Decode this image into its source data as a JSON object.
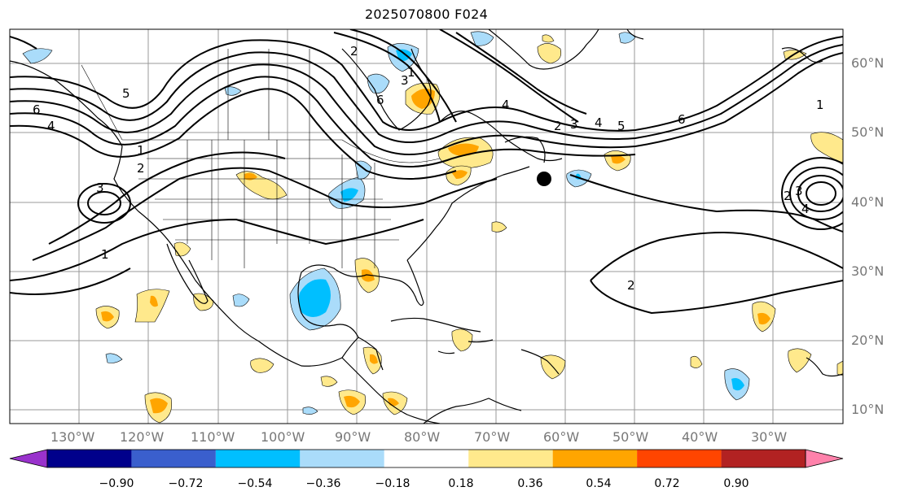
{
  "title": "2025070800 F024",
  "lon_labels": [
    "130°W",
    "120°W",
    "110°W",
    "100°W",
    "90°W",
    "80°W",
    "70°W",
    "60°W",
    "50°W",
    "40°W",
    "30°W"
  ],
  "lat_labels": [
    "60°N",
    "50°N",
    "40°N",
    "30°N",
    "20°N",
    "10°N"
  ],
  "contour_labels": [
    "6",
    "4",
    "5",
    "1",
    "2",
    "3",
    "1",
    "2",
    "6",
    "3",
    "4",
    "2",
    "3",
    "4",
    "5",
    "6",
    "1",
    "2",
    "3",
    "4",
    "2",
    "1"
  ],
  "marker": "black-dot",
  "colorbar": {
    "ticks": [
      "−0.90",
      "−0.72",
      "−0.54",
      "−0.36",
      "−0.18",
      "0.18",
      "0.36",
      "0.54",
      "0.72",
      "0.90"
    ],
    "colors": [
      "#9932cc",
      "#00008b",
      "#3a5fcd",
      "#00bfff",
      "#aadcfa",
      "#ffffff",
      "#ffe98c",
      "#ffa500",
      "#ff4500",
      "#b22222",
      "#ff82ab"
    ]
  }
}
